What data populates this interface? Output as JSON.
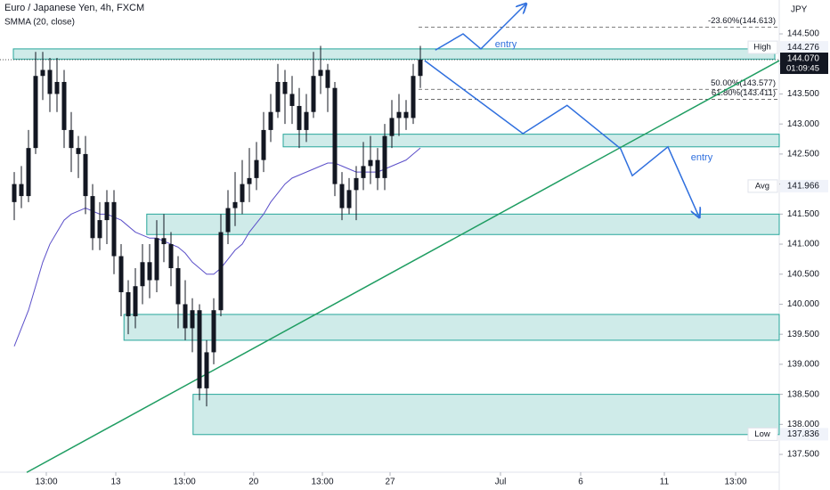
{
  "chart_data": {
    "type": "candlestick",
    "title": "Euro / Japanese Yen, 4h, FXCM",
    "subtitle": "SMMA (20, close)",
    "currency": "JPY",
    "open": [
      141.7,
      142.0,
      141.8,
      142.6,
      143.8,
      143.9,
      143.5,
      143.7,
      142.9,
      142.6,
      142.5,
      141.8,
      141.1,
      141.4,
      141.7,
      140.8,
      140.2,
      139.8,
      140.3,
      140.7,
      140.4,
      141.1,
      141.0,
      140.6,
      140.0,
      139.6,
      139.9,
      138.6,
      139.2,
      139.9,
      141.2,
      141.6,
      141.7,
      142.0,
      142.1,
      142.4,
      142.9,
      143.2,
      143.7,
      143.5,
      143.3,
      142.9,
      143.2,
      143.8,
      143.9,
      143.6,
      142.0,
      141.6,
      141.9,
      142.1,
      142.3,
      142.4,
      142.1,
      142.8,
      143.1,
      143.2,
      143.1,
      143.8
    ],
    "high": [
      142.2,
      142.3,
      142.9,
      144.2,
      144.2,
      144.1,
      144.1,
      143.9,
      143.2,
      142.8,
      142.8,
      142.0,
      141.7,
      141.9,
      141.9,
      141.0,
      140.4,
      140.6,
      141.0,
      141.0,
      141.4,
      141.5,
      141.2,
      140.8,
      140.4,
      140.1,
      140.0,
      139.4,
      140.1,
      141.5,
      141.9,
      142.2,
      142.4,
      142.6,
      142.7,
      143.2,
      143.5,
      144.0,
      143.9,
      143.8,
      143.6,
      143.5,
      144.2,
      144.3,
      144.0,
      143.7,
      142.2,
      142.1,
      142.3,
      142.7,
      142.8,
      142.6,
      143.0,
      143.4,
      143.5,
      143.4,
      144.0,
      144.3
    ],
    "low": [
      141.4,
      141.6,
      141.7,
      142.5,
      143.4,
      143.2,
      143.2,
      142.6,
      142.2,
      142.1,
      141.5,
      140.9,
      140.9,
      141.0,
      140.5,
      139.8,
      139.5,
      139.6,
      140.0,
      140.1,
      140.2,
      140.7,
      140.3,
      139.6,
      139.4,
      139.2,
      138.4,
      138.3,
      139.0,
      139.8,
      141.0,
      141.3,
      141.5,
      141.7,
      141.9,
      142.2,
      142.7,
      143.1,
      143.0,
      143.0,
      142.6,
      142.7,
      143.1,
      143.5,
      143.2,
      141.8,
      141.4,
      141.5,
      141.4,
      141.9,
      142.0,
      141.9,
      141.9,
      142.6,
      142.8,
      142.9,
      143.0,
      143.6
    ],
    "close": [
      142.0,
      141.8,
      142.6,
      143.8,
      143.9,
      143.5,
      143.7,
      142.9,
      142.6,
      142.5,
      141.8,
      141.1,
      141.4,
      141.7,
      140.8,
      140.2,
      139.8,
      140.3,
      140.7,
      140.4,
      141.1,
      141.0,
      140.6,
      140.0,
      139.6,
      139.9,
      138.6,
      139.2,
      139.9,
      141.2,
      141.6,
      141.7,
      142.0,
      142.1,
      142.4,
      142.9,
      143.2,
      143.7,
      143.5,
      143.3,
      142.9,
      143.2,
      143.8,
      143.9,
      143.6,
      142.0,
      141.6,
      141.9,
      142.1,
      142.3,
      142.4,
      142.1,
      142.8,
      143.1,
      143.2,
      143.1,
      143.8,
      144.07
    ],
    "color": "#131722",
    "indicator": {
      "name": "SMMA (20, close)",
      "color": "#5b4fc9",
      "values": [
        139.3,
        139.6,
        139.9,
        140.3,
        140.7,
        141.0,
        141.2,
        141.4,
        141.5,
        141.55,
        141.6,
        141.55,
        141.5,
        141.5,
        141.45,
        141.4,
        141.3,
        141.2,
        141.15,
        141.1,
        141.1,
        141.05,
        141.0,
        140.95,
        140.85,
        140.7,
        140.6,
        140.5,
        140.5,
        140.6,
        140.75,
        140.9,
        141.0,
        141.2,
        141.35,
        141.5,
        141.7,
        141.85,
        142.0,
        142.1,
        142.15,
        142.2,
        142.25,
        142.3,
        142.35,
        142.35,
        142.3,
        142.25,
        142.2,
        142.2,
        142.2,
        142.2,
        142.25,
        142.3,
        142.35,
        142.4,
        142.5,
        142.6
      ]
    },
    "xlim": [
      -2,
      107.375
    ],
    "xticks": [
      {
        "value": 4.5,
        "label": "13:00"
      },
      {
        "value": 14.25,
        "label": "13"
      },
      {
        "value": 23.9,
        "label": "13:00"
      },
      {
        "value": 33.6,
        "label": "20"
      },
      {
        "value": 43.25,
        "label": "13:00"
      },
      {
        "value": 52.75,
        "label": "27"
      },
      {
        "value": 68.25,
        "label": "Jul"
      },
      {
        "value": 79.5,
        "label": "6"
      },
      {
        "value": 91.25,
        "label": "11"
      },
      {
        "value": 101.25,
        "label": "13:00"
      }
    ],
    "ylim": [
      137.204,
      145.064
    ],
    "yticks": [
      {
        "value": 144.5,
        "label": "144.500"
      },
      {
        "value": 144,
        "label": "144.000"
      },
      {
        "value": 143.5,
        "label": "143.500"
      },
      {
        "value": 143,
        "label": "143.000"
      },
      {
        "value": 142.5,
        "label": "142.500"
      },
      {
        "value": 142,
        "label": "142.000"
      },
      {
        "value": 141.5,
        "label": "141.500"
      },
      {
        "value": 141,
        "label": "141.000"
      },
      {
        "value": 140.5,
        "label": "140.500"
      },
      {
        "value": 140,
        "label": "140.000"
      },
      {
        "value": 139.5,
        "label": "139.500"
      },
      {
        "value": 139,
        "label": "139.000"
      },
      {
        "value": 138.5,
        "label": "138.500"
      },
      {
        "value": 138,
        "label": "138.000"
      },
      {
        "value": 137.5,
        "label": "137.500"
      }
    ],
    "grid": false,
    "zones": [
      {
        "x": [
          -0.125,
          106.75
        ],
        "y": [
          144.08,
          144.25
        ]
      },
      {
        "x": [
          37.75,
          107.375
        ],
        "y": [
          142.62,
          142.83
        ]
      },
      {
        "x": [
          18.6,
          107.375
        ],
        "y": [
          141.16,
          141.5
        ]
      },
      {
        "x": [
          15.4,
          107.375
        ],
        "y": [
          139.4,
          139.83
        ]
      },
      {
        "x": [
          25.1,
          107.375
        ],
        "y": [
          137.83,
          138.5
        ]
      }
    ],
    "zone_color": "#26a69a",
    "trendline": {
      "x": [
        1.75,
        107.375
      ],
      "y": [
        137.2,
        144.055
      ],
      "color": "#1f9d62"
    },
    "paths": [
      {
        "x": [
          57.6,
          71.4,
          77.6,
          85.1,
          86.75,
          91.75,
          96.1
        ],
        "y": [
          144.055,
          142.84,
          143.31,
          142.59,
          142.14,
          142.62,
          141.46
        ]
      },
      {
        "x": [
          59.1,
          63,
          65.5,
          71.75
        ],
        "y": [
          144.23,
          144.5,
          144.25,
          144.99
        ]
      }
    ],
    "path_color": "#2f6fde",
    "annotations": [
      "entry",
      "entry"
    ],
    "fib_levels": [
      {
        "label": "-23.60%(144.613)",
        "value": 144.613
      },
      {
        "label": "50.00%(143.577)",
        "value": 143.577
      },
      {
        "label": "61.80%(143.411)",
        "value": 143.411
      }
    ],
    "price_labels": [
      {
        "label": "High",
        "value": 144.276
      },
      {
        "label": "Avg",
        "value": 141.966
      },
      {
        "label": "Low",
        "value": 137.836
      }
    ],
    "current": {
      "value": 144.07,
      "label": "144.070",
      "countdown": "01:09:45"
    }
  }
}
